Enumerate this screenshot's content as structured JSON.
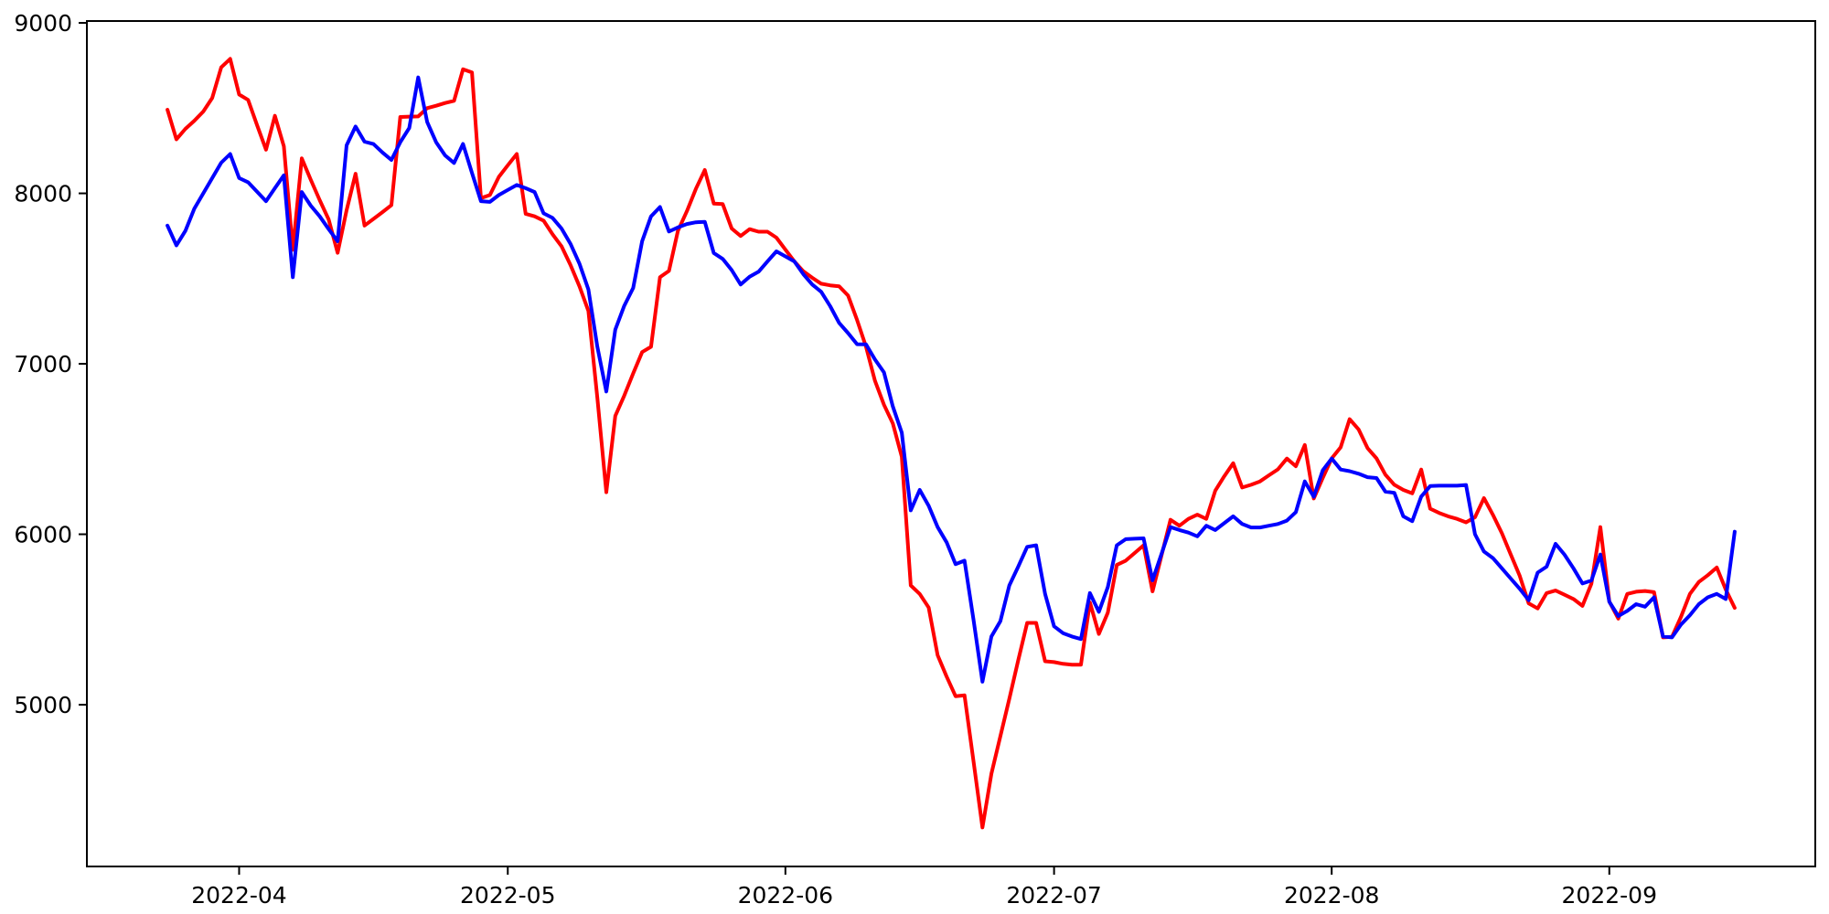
{
  "chart_data": {
    "type": "line",
    "title": "",
    "xlabel": "",
    "ylabel": "",
    "grid": false,
    "legend": "none",
    "background_color": "#ffffff",
    "spine_color": "#000000",
    "tick_label_color": "#000000",
    "xlim": [
      "2022-03-15",
      "2022-09-24"
    ],
    "ylim": [
      4051,
      9011
    ],
    "y_ticks": [
      5000,
      6000,
      7000,
      8000,
      9000
    ],
    "y_tick_labels": [
      "5000",
      "6000",
      "7000",
      "8000",
      "9000"
    ],
    "x_tick_dates": [
      "2022-04-01",
      "2022-05-01",
      "2022-06-01",
      "2022-07-01",
      "2022-08-01",
      "2022-09-01"
    ],
    "x_tick_labels": [
      "2022-04",
      "2022-05",
      "2022-06",
      "2022-07",
      "2022-08",
      "2022-09"
    ],
    "x": [
      "2022-03-24",
      "2022-03-25",
      "2022-03-26",
      "2022-03-27",
      "2022-03-28",
      "2022-03-29",
      "2022-03-30",
      "2022-03-31",
      "2022-04-01",
      "2022-04-02",
      "2022-04-03",
      "2022-04-04",
      "2022-04-05",
      "2022-04-06",
      "2022-04-07",
      "2022-04-08",
      "2022-04-09",
      "2022-04-10",
      "2022-04-11",
      "2022-04-12",
      "2022-04-13",
      "2022-04-14",
      "2022-04-15",
      "2022-04-16",
      "2022-04-17",
      "2022-04-18",
      "2022-04-19",
      "2022-04-20",
      "2022-04-21",
      "2022-04-22",
      "2022-04-23",
      "2022-04-24",
      "2022-04-25",
      "2022-04-26",
      "2022-04-27",
      "2022-04-28",
      "2022-04-29",
      "2022-04-30",
      "2022-05-01",
      "2022-05-02",
      "2022-05-03",
      "2022-05-04",
      "2022-05-05",
      "2022-05-06",
      "2022-05-07",
      "2022-05-08",
      "2022-05-09",
      "2022-05-10",
      "2022-05-11",
      "2022-05-12",
      "2022-05-13",
      "2022-05-14",
      "2022-05-15",
      "2022-05-16",
      "2022-05-17",
      "2022-05-18",
      "2022-05-19",
      "2022-05-20",
      "2022-05-21",
      "2022-05-22",
      "2022-05-23",
      "2022-05-24",
      "2022-05-25",
      "2022-05-26",
      "2022-05-27",
      "2022-05-28",
      "2022-05-29",
      "2022-05-30",
      "2022-05-31",
      "2022-06-01",
      "2022-06-02",
      "2022-06-03",
      "2022-06-04",
      "2022-06-05",
      "2022-06-06",
      "2022-06-07",
      "2022-06-08",
      "2022-06-09",
      "2022-06-10",
      "2022-06-11",
      "2022-06-12",
      "2022-06-13",
      "2022-06-14",
      "2022-06-15",
      "2022-06-16",
      "2022-06-17",
      "2022-06-18",
      "2022-06-19",
      "2022-06-20",
      "2022-06-21",
      "2022-06-22",
      "2022-06-23",
      "2022-06-24",
      "2022-06-25",
      "2022-06-26",
      "2022-06-27",
      "2022-06-28",
      "2022-06-29",
      "2022-06-30",
      "2022-07-01",
      "2022-07-02",
      "2022-07-03",
      "2022-07-04",
      "2022-07-05",
      "2022-07-06",
      "2022-07-07",
      "2022-07-08",
      "2022-07-09",
      "2022-07-10",
      "2022-07-11",
      "2022-07-12",
      "2022-07-13",
      "2022-07-14",
      "2022-07-15",
      "2022-07-16",
      "2022-07-17",
      "2022-07-18",
      "2022-07-19",
      "2022-07-20",
      "2022-07-21",
      "2022-07-22",
      "2022-07-23",
      "2022-07-24",
      "2022-07-25",
      "2022-07-26",
      "2022-07-27",
      "2022-07-28",
      "2022-07-29",
      "2022-07-30",
      "2022-07-31",
      "2022-08-01",
      "2022-08-02",
      "2022-08-03",
      "2022-08-04",
      "2022-08-05",
      "2022-08-06",
      "2022-08-07",
      "2022-08-08",
      "2022-08-09",
      "2022-08-10",
      "2022-08-11",
      "2022-08-12",
      "2022-08-13",
      "2022-08-14",
      "2022-08-15",
      "2022-08-16",
      "2022-08-17",
      "2022-08-18",
      "2022-08-19",
      "2022-08-20",
      "2022-08-21",
      "2022-08-22",
      "2022-08-23",
      "2022-08-24",
      "2022-08-25",
      "2022-08-26",
      "2022-08-27",
      "2022-08-28",
      "2022-08-29",
      "2022-08-30",
      "2022-08-31",
      "2022-09-01",
      "2022-09-02",
      "2022-09-03",
      "2022-09-04",
      "2022-09-05",
      "2022-09-06",
      "2022-09-07",
      "2022-09-08",
      "2022-09-09",
      "2022-09-10",
      "2022-09-11",
      "2022-09-12",
      "2022-09-13",
      "2022-09-14",
      "2022-09-15"
    ],
    "series": [
      {
        "name": "red-line",
        "color": "#ff0000",
        "values": [
          8491,
          8317,
          8378,
          8426,
          8480,
          8560,
          8739,
          8789,
          8580,
          8548,
          8400,
          8256,
          8455,
          8276,
          7669,
          8205,
          8080,
          7960,
          7847,
          7651,
          7901,
          8115,
          7811,
          7850,
          7890,
          7931,
          8448,
          8450,
          8451,
          8500,
          8514,
          8530,
          8543,
          8728,
          8709,
          7972,
          7990,
          8097,
          8165,
          8231,
          7880,
          7865,
          7840,
          7760,
          7690,
          7580,
          7455,
          7310,
          6800,
          6247,
          6694,
          6813,
          6944,
          7069,
          7100,
          7508,
          7545,
          7780,
          7895,
          8026,
          8137,
          7940,
          7937,
          7794,
          7750,
          7790,
          7775,
          7775,
          7740,
          7670,
          7601,
          7543,
          7505,
          7470,
          7460,
          7455,
          7400,
          7257,
          7100,
          6900,
          6760,
          6650,
          6455,
          5700,
          5650,
          5570,
          5290,
          5165,
          5050,
          5055,
          4670,
          4280,
          4595,
          4815,
          5035,
          5260,
          5480,
          5480,
          5255,
          5250,
          5240,
          5235,
          5235,
          5600,
          5415,
          5540,
          5820,
          5845,
          5890,
          5935,
          5665,
          5875,
          6085,
          6050,
          6090,
          6115,
          6090,
          6256,
          6340,
          6417,
          6274,
          6290,
          6310,
          6346,
          6381,
          6444,
          6399,
          6524,
          6210,
          6330,
          6445,
          6510,
          6675,
          6615,
          6505,
          6445,
          6350,
          6290,
          6260,
          6240,
          6380,
          6150,
          6125,
          6105,
          6090,
          6070,
          6100,
          6212,
          6114,
          6006,
          5881,
          5756,
          5595,
          5565,
          5655,
          5670,
          5645,
          5620,
          5580,
          5710,
          6042,
          5605,
          5505,
          5650,
          5663,
          5667,
          5660,
          5395,
          5398,
          5515,
          5650,
          5720,
          5760,
          5805,
          5676,
          5568
        ]
      },
      {
        "name": "blue-line",
        "color": "#0000ff",
        "values": [
          7811,
          7695,
          7780,
          7910,
          8000,
          8090,
          8180,
          8231,
          8090,
          8065,
          8010,
          7954,
          8030,
          8106,
          7508,
          8008,
          7928,
          7865,
          7790,
          7719,
          8282,
          8392,
          8303,
          8289,
          8240,
          8196,
          8300,
          8383,
          8680,
          8419,
          8300,
          8223,
          8178,
          8290,
          8120,
          7954,
          7950,
          7990,
          8020,
          8049,
          8030,
          8008,
          7883,
          7856,
          7794,
          7704,
          7588,
          7436,
          7100,
          6837,
          7200,
          7340,
          7445,
          7720,
          7865,
          7920,
          7776,
          7800,
          7820,
          7830,
          7833,
          7650,
          7615,
          7550,
          7465,
          7511,
          7540,
          7600,
          7660,
          7630,
          7601,
          7526,
          7465,
          7422,
          7338,
          7240,
          7180,
          7115,
          7114,
          7025,
          6950,
          6750,
          6596,
          6140,
          6260,
          6167,
          6042,
          5953,
          5825,
          5845,
          5500,
          5135,
          5400,
          5490,
          5700,
          5810,
          5926,
          5935,
          5650,
          5460,
          5420,
          5400,
          5385,
          5655,
          5545,
          5690,
          5935,
          5971,
          5974,
          5976,
          5730,
          5885,
          6042,
          6025,
          6010,
          5988,
          6050,
          6025,
          6065,
          6105,
          6060,
          6040,
          6040,
          6050,
          6060,
          6080,
          6130,
          6310,
          6220,
          6375,
          6444,
          6380,
          6370,
          6355,
          6335,
          6330,
          6250,
          6243,
          6105,
          6077,
          6221,
          6283,
          6285,
          6285,
          6285,
          6289,
          6000,
          5899,
          5860,
          5800,
          5740,
          5680,
          5613,
          5775,
          5810,
          5944,
          5880,
          5800,
          5711,
          5729,
          5881,
          5604,
          5520,
          5550,
          5590,
          5575,
          5630,
          5400,
          5395,
          5470,
          5525,
          5590,
          5630,
          5650,
          5620,
          6015
        ]
      }
    ]
  }
}
